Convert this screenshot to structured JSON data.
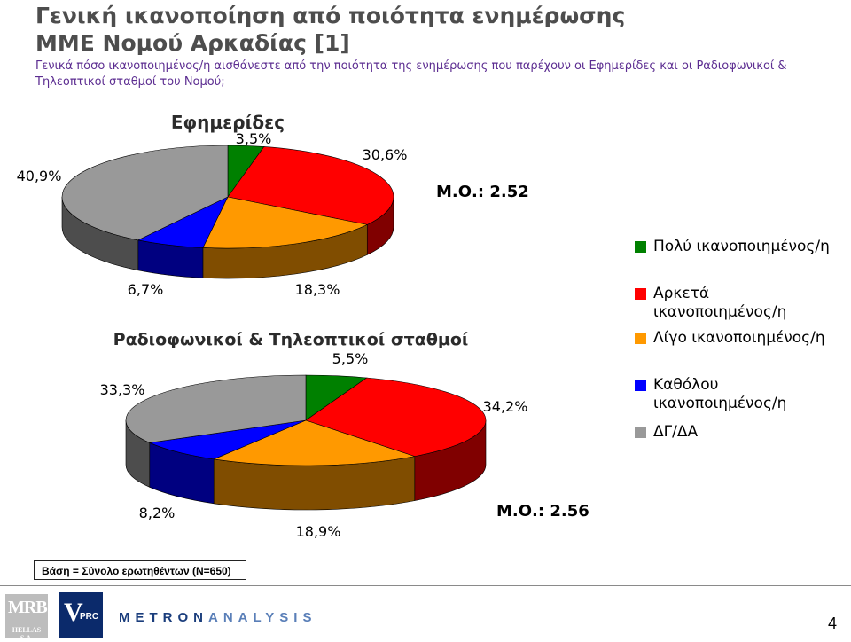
{
  "header": {
    "title_line1": "Γενική ικανοποίηση από ποιότητα ενημέρωσης",
    "title_line2": "ΜΜΕ Νομού Αρκαδίας [1]",
    "question": "Γενικά πόσο ικανοποιημένος/η αισθάνεστε από την ποιότητα της ενημέρωσης που παρέχουν οι Εφημερίδες και οι Ραδιοφωνικοί & Τηλεοπτικοί σταθμοί του Νομού;"
  },
  "chart_data": [
    {
      "type": "pie",
      "title": "Εφημερίδες",
      "categories": [
        "Πολύ ικανοποιημένος/η",
        "Αρκετά ικανοποιημένος/η",
        "Λίγο ικανοποιημένος/η",
        "Καθόλου ικανοποιημένος/η",
        "ΔΓ/ΔΑ"
      ],
      "values": [
        3.5,
        30.6,
        18.3,
        6.7,
        40.9
      ],
      "labels": [
        "3,5%",
        "30,6%",
        "18,3%",
        "6,7%",
        "40,9%"
      ],
      "annotation": "Μ.Ο.: 2.52"
    },
    {
      "type": "pie",
      "title": "Ραδιοφωνικοί & Τηλεοπτικοί σταθμοί",
      "categories": [
        "Πολύ ικανοποιημένος/η",
        "Αρκετά ικανοποιημένος/η",
        "Λίγο ικανοποιημένος/η",
        "Καθόλου ικανοποιημένος/η",
        "ΔΓ/ΔΑ"
      ],
      "values": [
        5.5,
        34.2,
        18.9,
        8.2,
        33.3
      ],
      "labels": [
        "5,5%",
        "34,2%",
        "18,9%",
        "8,2%",
        "33,3%"
      ],
      "annotation": "Μ.Ο.: 2.56"
    }
  ],
  "colors": [
    "#008000",
    "#ff0000",
    "#ff9900",
    "#0000ff",
    "#999999"
  ],
  "legend": {
    "items": [
      {
        "label": "Πολύ ικανοποιημένος/η",
        "color": "#008000"
      },
      {
        "label": "Αρκετά ικανοποιημένος/η",
        "color": "#ff0000"
      },
      {
        "label": "Λίγο ικανοποιημένος/η",
        "color": "#ff9900"
      },
      {
        "label": "Καθόλου ικανοποιημένος/η",
        "color": "#0000ff"
      },
      {
        "label": "ΔΓ/ΔΑ",
        "color": "#999999"
      }
    ]
  },
  "footer": {
    "basis": "Βάση = Σύνολο ερωτηθέντων (Ν=650)",
    "logo_mrb": "MRB",
    "logo_mrb_sub": "HELLAS S.A.",
    "logo_vprc_v": "V",
    "logo_vprc_rest": "PRC",
    "logo_metron_1": "METRON",
    "logo_metron_2": "ANALYSIS",
    "page_number": "4"
  }
}
